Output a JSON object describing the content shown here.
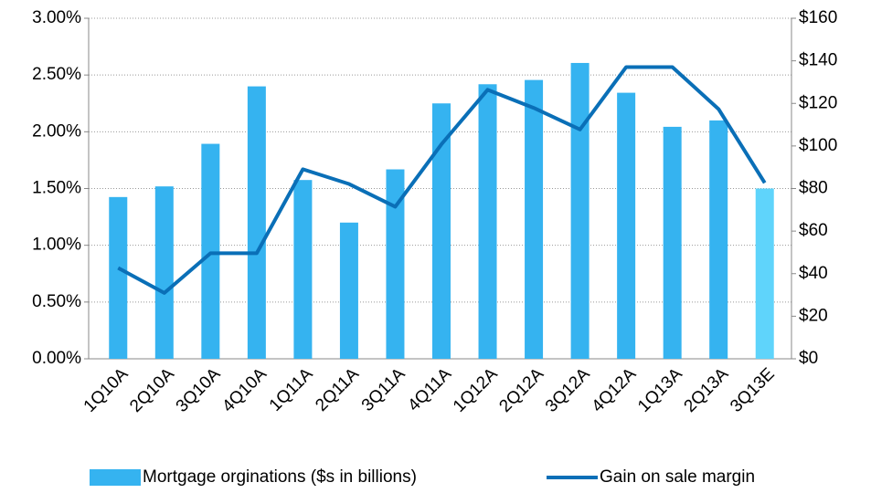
{
  "chart_data": {
    "type": "bar-line",
    "categories": [
      "1Q10A",
      "2Q10A",
      "3Q10A",
      "4Q10A",
      "1Q11A",
      "2Q11A",
      "3Q11A",
      "4Q11A",
      "1Q12A",
      "2Q12A",
      "3Q12A",
      "4Q12A",
      "1Q13A",
      "2Q13A",
      "3Q13E"
    ],
    "series": [
      {
        "name": "Mortgage orginations ($s in billions)",
        "type": "bar",
        "axis": "y2",
        "color": "#35b3f0",
        "colors": [
          "#35b3f0",
          "#35b3f0",
          "#35b3f0",
          "#35b3f0",
          "#35b3f0",
          "#35b3f0",
          "#35b3f0",
          "#35b3f0",
          "#35b3f0",
          "#35b3f0",
          "#35b3f0",
          "#35b3f0",
          "#35b3f0",
          "#35b3f0",
          "#5fd4fb"
        ],
        "values": [
          76,
          81,
          101,
          128,
          84,
          64,
          89,
          120,
          129,
          131,
          139,
          125,
          109,
          112,
          80
        ]
      },
      {
        "name": "Gain on sale margin",
        "type": "line",
        "axis": "y",
        "color": "#0a6fb7",
        "values": [
          0.8,
          0.58,
          0.93,
          0.93,
          1.67,
          1.54,
          1.34,
          1.89,
          2.37,
          2.21,
          2.02,
          2.57,
          2.57,
          2.2,
          1.55
        ]
      }
    ],
    "ylim": [
      0,
      3
    ],
    "yticks": [
      {
        "value": 0,
        "label": "0.00%"
      },
      {
        "value": 0.5,
        "label": "0.50%"
      },
      {
        "value": 1,
        "label": "1.00%"
      },
      {
        "value": 1.5,
        "label": "1.50%"
      },
      {
        "value": 2,
        "label": "2.00%"
      },
      {
        "value": 2.5,
        "label": "2.50%"
      },
      {
        "value": 3,
        "label": "3.00%"
      }
    ],
    "y2lim": [
      0,
      160
    ],
    "y2ticks": [
      {
        "value": 0,
        "label": "$0"
      },
      {
        "value": 20,
        "label": "$20"
      },
      {
        "value": 40,
        "label": "$40"
      },
      {
        "value": 60,
        "label": "$60"
      },
      {
        "value": 80,
        "label": "$80"
      },
      {
        "value": 100,
        "label": "$100"
      },
      {
        "value": 120,
        "label": "$120"
      },
      {
        "value": 140,
        "label": "$140"
      },
      {
        "value": 160,
        "label": "$160"
      }
    ],
    "grid": true
  }
}
